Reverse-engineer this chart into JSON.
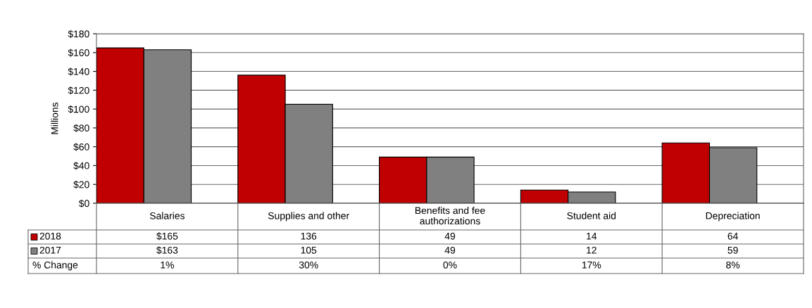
{
  "chart_data": {
    "type": "bar",
    "ylabel": "Millions",
    "categories": [
      "Salaries",
      "Supplies and other",
      "Benefits and fee\nauthorizations",
      "Student aid",
      "Depreciation"
    ],
    "series": [
      {
        "name": "2018",
        "color": "#c00000",
        "values": [
          165,
          136,
          49,
          14,
          64
        ],
        "value_labels": [
          "$165",
          "136",
          "49",
          "14",
          "64"
        ]
      },
      {
        "name": "2017",
        "color": "#808080",
        "values": [
          163,
          105,
          49,
          12,
          59
        ],
        "value_labels": [
          "$163",
          "105",
          "49",
          "12",
          "59"
        ]
      }
    ],
    "annotations": [
      "% Change",
      "1%",
      "30%",
      "0%",
      "17%",
      "8%"
    ],
    "ylim": [
      0,
      180
    ],
    "yticks": [
      {
        "value": 0,
        "label": "$0"
      },
      {
        "value": 20,
        "label": "$20"
      },
      {
        "value": 40,
        "label": "$40"
      },
      {
        "value": 60,
        "label": "$60"
      },
      {
        "value": 80,
        "label": "$80"
      },
      {
        "value": 100,
        "label": "$100"
      },
      {
        "value": 120,
        "label": "$120"
      },
      {
        "value": 140,
        "label": "$140"
      },
      {
        "value": 160,
        "label": "$160"
      },
      {
        "value": 180,
        "label": "$180"
      }
    ],
    "grid": "y",
    "legend": "bottom left"
  }
}
